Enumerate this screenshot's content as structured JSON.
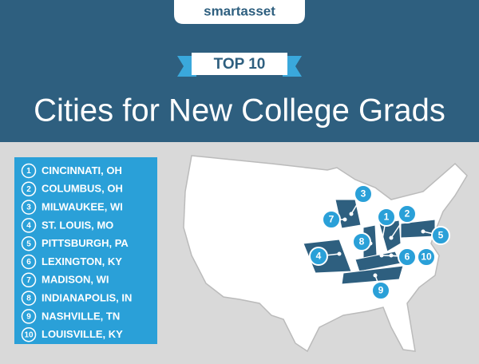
{
  "brand": "smartasset",
  "banner": "TOP 10",
  "title": "Cities for New College Grads",
  "list": [
    {
      "rank": "1",
      "city": "CINCINNATI, OH"
    },
    {
      "rank": "2",
      "city": "COLUMBUS, OH"
    },
    {
      "rank": "3",
      "city": "MILWAUKEE, WI"
    },
    {
      "rank": "4",
      "city": "ST. LOUIS, MO"
    },
    {
      "rank": "5",
      "city": "PITTSBURGH, PA"
    },
    {
      "rank": "6",
      "city": "LEXINGTON, KY"
    },
    {
      "rank": "7",
      "city": "MADISON, WI"
    },
    {
      "rank": "8",
      "city": "INDIANAPOLIS, IN"
    },
    {
      "rank": "9",
      "city": "NASHVILLE, TN"
    },
    {
      "rank": "10",
      "city": "LOUISVILLE, KY"
    }
  ]
}
